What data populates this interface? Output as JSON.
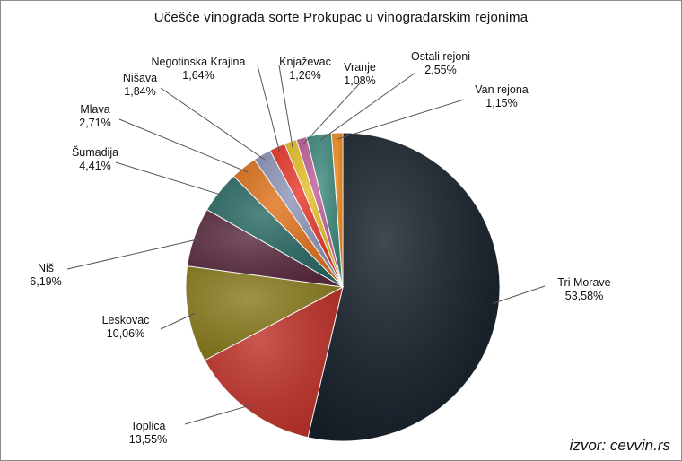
{
  "chart_data": {
    "type": "pie",
    "title": "Učešće vinograda sorte Prokupac u vinogradarskim rejonima",
    "slices": [
      {
        "name": "Tri Morave",
        "value": 53.58,
        "label": "53,58%",
        "color": "#17202a"
      },
      {
        "name": "Toplica",
        "value": 13.55,
        "label": "13,55%",
        "color": "#c0332b"
      },
      {
        "name": "Leskovac",
        "value": 10.06,
        "label": "10,06%",
        "color": "#8a7d1f"
      },
      {
        "name": "Niš",
        "value": 6.19,
        "label": "6,19%",
        "color": "#5a2c40"
      },
      {
        "name": "Šumadija",
        "value": 4.41,
        "label": "4,41%",
        "color": "#2a6b66"
      },
      {
        "name": "Mlava",
        "value": 2.71,
        "label": "2,71%",
        "color": "#e0741e"
      },
      {
        "name": "Nišava",
        "value": 1.84,
        "label": "1,84%",
        "color": "#8e96b8"
      },
      {
        "name": "Negotinska Krajina",
        "value": 1.64,
        "label": "1,64%",
        "color": "#e8392c"
      },
      {
        "name": "Knjaževac",
        "value": 1.26,
        "label": "1,26%",
        "color": "#e6c02a"
      },
      {
        "name": "Vranje",
        "value": 1.08,
        "label": "1,08%",
        "color": "#c0609a"
      },
      {
        "name": "Ostali rejoni",
        "value": 2.55,
        "label": "2,55%",
        "color": "#3f8a7e"
      },
      {
        "name": "Van rejona",
        "value": 1.15,
        "label": "1,15%",
        "color": "#f08a1e"
      }
    ]
  },
  "source": "izvor: cevvin.rs"
}
